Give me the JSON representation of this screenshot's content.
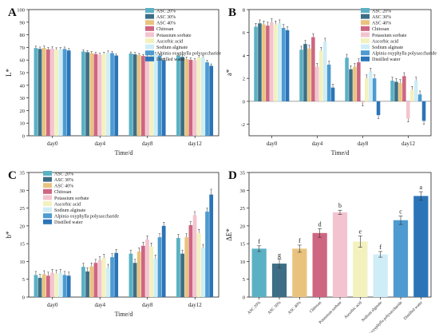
{
  "legend_names": [
    "ASC 20%",
    "ASC 30%",
    "ASC 40%",
    "Chitosan",
    "Potassium sorbate",
    "Ascorbic acid",
    "Sodium alginate",
    "Alpinia oxyphylla polysaccharide",
    "Distilled water"
  ],
  "series_colors": [
    "#5BB1C4",
    "#3D6E86",
    "#E9C37E",
    "#CE6681",
    "#F3C4CF",
    "#F3F1BE",
    "#CFEDF6",
    "#4D9BD1",
    "#2B74B8"
  ],
  "chart_data": [
    {
      "type": "bar",
      "panel_letter": "A",
      "ylabel": "L*",
      "xlabel": "Time/d",
      "ylim": [
        0,
        100
      ],
      "yticks": [
        0,
        10,
        20,
        30,
        40,
        50,
        60,
        70,
        80,
        90,
        100
      ],
      "categories": [
        "day0",
        "day4",
        "day8",
        "day12"
      ],
      "legend_position": "top-right",
      "series": [
        {
          "name": "ASC 20%",
          "values": [
            69.5,
            66.8,
            65.2,
            63.5
          ],
          "errors": [
            1.5,
            1.2,
            1.2,
            1.5
          ]
        },
        {
          "name": "ASC 30%",
          "values": [
            68.8,
            66.2,
            64.5,
            62.5
          ],
          "errors": [
            1.5,
            1.2,
            1.5,
            1.5
          ]
        },
        {
          "name": "ASC 40%",
          "values": [
            69.6,
            65.5,
            64.0,
            60.8
          ],
          "errors": [
            1.5,
            1.2,
            1.2,
            1.5
          ]
        },
        {
          "name": "Chitosan",
          "values": [
            68.4,
            64.8,
            63.2,
            60.2
          ],
          "errors": [
            1.5,
            1.2,
            1.2,
            1.5
          ]
        },
        {
          "name": "Potassium sorbate",
          "values": [
            69.0,
            64.2,
            62.8,
            59.8
          ],
          "errors": [
            1.5,
            1.2,
            1.2,
            1.5
          ]
        },
        {
          "name": "Ascorbic acid",
          "values": [
            68.2,
            65.0,
            63.5,
            62.0
          ],
          "errors": [
            1.5,
            1.2,
            1.2,
            1.5
          ]
        },
        {
          "name": "Sodium alginate",
          "values": [
            68.4,
            66.0,
            64.8,
            62.0
          ],
          "errors": [
            1.5,
            1.2,
            1.2,
            1.5
          ]
        },
        {
          "name": "Alpinia oxyphylla polysaccharide",
          "values": [
            68.8,
            65.5,
            63.6,
            58.2
          ],
          "errors": [
            1.5,
            1.2,
            1.2,
            1.5
          ]
        },
        {
          "name": "Distilled water",
          "values": [
            67.6,
            63.6,
            59.8,
            55.4
          ],
          "errors": [
            1.5,
            1.2,
            1.5,
            1.5
          ]
        }
      ]
    },
    {
      "type": "bar",
      "panel_letter": "B",
      "ylabel": "a*",
      "xlabel": "Time/d",
      "ylim": [
        -3,
        8
      ],
      "yticks": [
        -2,
        0,
        2,
        4,
        6,
        8
      ],
      "categories": [
        "day0",
        "day4",
        "day8",
        "day12"
      ],
      "legend_position": "top-right",
      "series": [
        {
          "name": "ASC 20%",
          "values": [
            6.5,
            4.5,
            3.8,
            1.8
          ],
          "errors": [
            0.3,
            0.3,
            0.3,
            0.3
          ]
        },
        {
          "name": "ASC 30%",
          "values": [
            6.8,
            5.0,
            2.8,
            1.7
          ],
          "errors": [
            0.3,
            0.3,
            0.3,
            0.3
          ]
        },
        {
          "name": "ASC 40%",
          "values": [
            6.7,
            4.6,
            3.0,
            1.6
          ],
          "errors": [
            0.3,
            0.3,
            0.3,
            0.3
          ]
        },
        {
          "name": "Chitosan",
          "values": [
            6.6,
            5.6,
            3.4,
            2.2
          ],
          "errors": [
            0.3,
            0.3,
            0.3,
            0.3
          ]
        },
        {
          "name": "Potassium sorbate",
          "values": [
            6.9,
            3.0,
            -0.1,
            -1.5
          ],
          "errors": [
            0.3,
            0.3,
            0.3,
            0.3
          ]
        },
        {
          "name": "Ascorbic acid",
          "values": [
            6.7,
            4.4,
            2.0,
            1.0
          ],
          "errors": [
            0.3,
            0.3,
            0.3,
            0.3
          ]
        },
        {
          "name": "Sodium alginate",
          "values": [
            6.8,
            5.2,
            2.6,
            1.8
          ],
          "errors": [
            0.3,
            0.3,
            0.3,
            0.3
          ]
        },
        {
          "name": "Alpinia oxyphylla polysaccharide",
          "values": [
            6.4,
            3.2,
            2.0,
            0.6
          ],
          "errors": [
            0.3,
            0.3,
            0.3,
            0.3
          ]
        },
        {
          "name": "Distilled water",
          "values": [
            6.2,
            1.2,
            -1.2,
            -1.7
          ],
          "errors": [
            0.3,
            0.3,
            0.3,
            0.3
          ]
        }
      ]
    },
    {
      "type": "bar",
      "panel_letter": "C",
      "ylabel": "b*",
      "xlabel": "Time/d",
      "ylim": [
        0,
        35
      ],
      "yticks": [
        0,
        5,
        10,
        15,
        20,
        25,
        30,
        35
      ],
      "categories": [
        "day0",
        "day4",
        "day8",
        "day12"
      ],
      "legend_position": "top-left",
      "series": [
        {
          "name": "ASC 20%",
          "values": [
            6.2,
            8.5,
            12.2,
            16.6
          ],
          "errors": [
            1.0,
            1.0,
            1.0,
            1.0
          ]
        },
        {
          "name": "ASC 30%",
          "values": [
            5.4,
            7.2,
            9.6,
            12.2
          ],
          "errors": [
            1.0,
            1.0,
            1.0,
            1.0
          ]
        },
        {
          "name": "ASC 40%",
          "values": [
            6.4,
            8.6,
            12.8,
            16.8
          ],
          "errors": [
            1.0,
            1.0,
            1.0,
            1.0
          ]
        },
        {
          "name": "Chitosan",
          "values": [
            6.0,
            9.6,
            14.4,
            20.2
          ],
          "errors": [
            1.0,
            1.0,
            1.0,
            1.0
          ]
        },
        {
          "name": "Potassium sorbate",
          "values": [
            6.8,
            10.4,
            16.2,
            23.0
          ],
          "errors": [
            1.0,
            1.0,
            1.0,
            1.0
          ]
        },
        {
          "name": "Ascorbic acid",
          "values": [
            6.6,
            11.0,
            14.2,
            18.0
          ],
          "errors": [
            1.0,
            1.0,
            1.0,
            1.0
          ]
        },
        {
          "name": "Sodium alginate",
          "values": [
            6.8,
            8.2,
            10.8,
            13.8
          ],
          "errors": [
            1.0,
            1.0,
            1.0,
            1.0
          ]
        },
        {
          "name": "Alpinia oxyphylla polysaccharide",
          "values": [
            6.2,
            11.2,
            16.8,
            24.0
          ],
          "errors": [
            1.0,
            1.0,
            1.0,
            1.0
          ]
        },
        {
          "name": "Distilled water",
          "values": [
            6.0,
            12.4,
            20.0,
            28.8
          ],
          "errors": [
            1.0,
            1.0,
            1.0,
            1.5
          ]
        }
      ]
    },
    {
      "type": "bar",
      "panel_letter": "D",
      "ylabel": "ΔE*",
      "xlabel": "",
      "ylim": [
        0,
        35
      ],
      "yticks": [
        0,
        5,
        10,
        15,
        20,
        25,
        30,
        35
      ],
      "categories": [
        "ASC 20%",
        "ASC 30%",
        "ASC 40%",
        "Chitosan",
        "Potassium sorbate",
        "Ascorbic acid",
        "Sodium alginate",
        "Alpinia oxyphylla polysaccharide",
        "Distilled water"
      ],
      "values": [
        13.6,
        9.4,
        13.6,
        18.0,
        23.8,
        15.6,
        12.0,
        21.6,
        28.4
      ],
      "errors": [
        0.8,
        1.2,
        1.0,
        1.2,
        0.6,
        1.6,
        0.8,
        1.2,
        1.2
      ],
      "significance": [
        "f",
        "g",
        "f",
        "d",
        "b",
        "e",
        "f",
        "c",
        "a"
      ]
    }
  ]
}
